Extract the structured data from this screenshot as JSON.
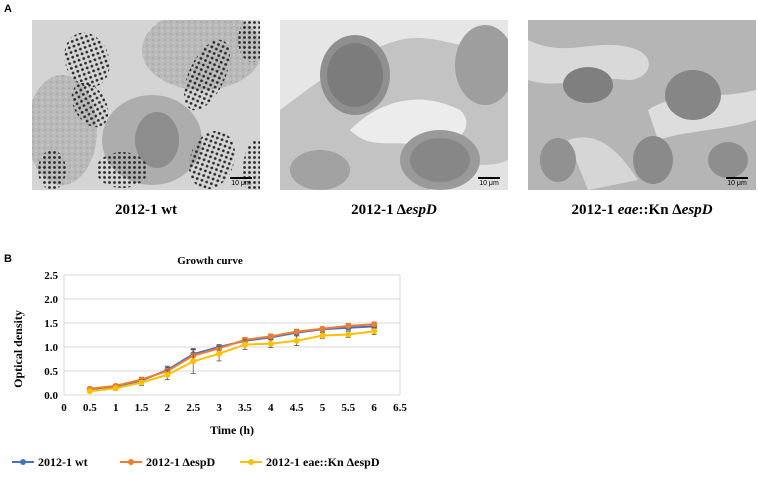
{
  "panel_a": {
    "label": "A",
    "images": [
      {
        "scale": "10 μm",
        "caption_plain": "2012-1 wt",
        "caption_italic": ""
      },
      {
        "scale": "10 μm",
        "caption_plain": "2012-1 Δ",
        "caption_italic": "espD"
      },
      {
        "scale": "10 μm",
        "caption_plain": "2012-1 ",
        "caption_italic": "eae",
        "caption_mid": "::Kn Δ",
        "caption_italic2": "espD"
      }
    ]
  },
  "panel_b": {
    "label": "B"
  },
  "chart_data": {
    "type": "line",
    "title": "Growth curve",
    "xlabel": "Time (h)",
    "ylabel": "Optical density",
    "xlim": [
      0,
      6.5
    ],
    "ylim": [
      0,
      2.5
    ],
    "x_ticks": [
      "0",
      "0.5",
      "1",
      "1.5",
      "2",
      "2.5",
      "3",
      "3.5",
      "4",
      "4.5",
      "5",
      "5.5",
      "6",
      "6.5"
    ],
    "y_ticks": [
      "0.0",
      "0.5",
      "1.0",
      "1.5",
      "2.0",
      "2.5"
    ],
    "grid": true,
    "legend_position": "bottom",
    "x": [
      0.5,
      1,
      1.5,
      2,
      2.5,
      3,
      3.5,
      4,
      4.5,
      5,
      5.5,
      6
    ],
    "series": [
      {
        "name": "2012-1 wt",
        "color": "#4472C4",
        "values": [
          0.12,
          0.18,
          0.3,
          0.52,
          0.85,
          1.0,
          1.13,
          1.2,
          1.3,
          1.37,
          1.4,
          1.43
        ],
        "errors": [
          0.03,
          0.03,
          0.05,
          0.08,
          0.12,
          0.05,
          0.05,
          0.05,
          0.05,
          0.04,
          0.05,
          0.05
        ]
      },
      {
        "name": "2012-1 ΔespD",
        "color": "#ED7D31",
        "values": [
          0.13,
          0.19,
          0.32,
          0.5,
          0.82,
          0.97,
          1.15,
          1.22,
          1.32,
          1.38,
          1.44,
          1.47
        ],
        "errors": [
          0.03,
          0.03,
          0.05,
          0.08,
          0.12,
          0.05,
          0.05,
          0.05,
          0.05,
          0.04,
          0.05,
          0.05
        ]
      },
      {
        "name": "2012-1 eae::Kn ΔespD",
        "color": "#FFC000",
        "values": [
          0.08,
          0.14,
          0.26,
          0.42,
          0.7,
          0.86,
          1.05,
          1.07,
          1.13,
          1.24,
          1.26,
          1.33
        ],
        "errors": [
          0.03,
          0.04,
          0.06,
          0.1,
          0.25,
          0.15,
          0.1,
          0.08,
          0.1,
          0.06,
          0.06,
          0.07
        ]
      }
    ]
  }
}
